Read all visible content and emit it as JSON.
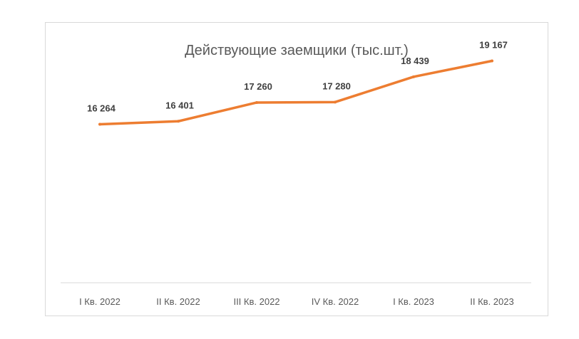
{
  "chart_data": {
    "type": "line",
    "title": "Действующие заемщики (тыс.шт.)",
    "categories": [
      "I Кв. 2022",
      "II Кв. 2022",
      "III Кв. 2022",
      "IV Кв. 2022",
      "I Кв. 2023",
      "II Кв. 2023"
    ],
    "series": [
      {
        "values": [
          16264,
          16401,
          17260,
          17280,
          18439,
          19167
        ],
        "value_labels": [
          "16 264",
          "16 401",
          "17 260",
          "17 280",
          "18 439",
          "19 167"
        ],
        "color": "#ed7d31"
      }
    ],
    "xlabel": "",
    "ylabel": "",
    "ylim": [
      9000,
      20000
    ],
    "grid": false,
    "legend": "none",
    "axis_color": "#d9d9d9"
  }
}
